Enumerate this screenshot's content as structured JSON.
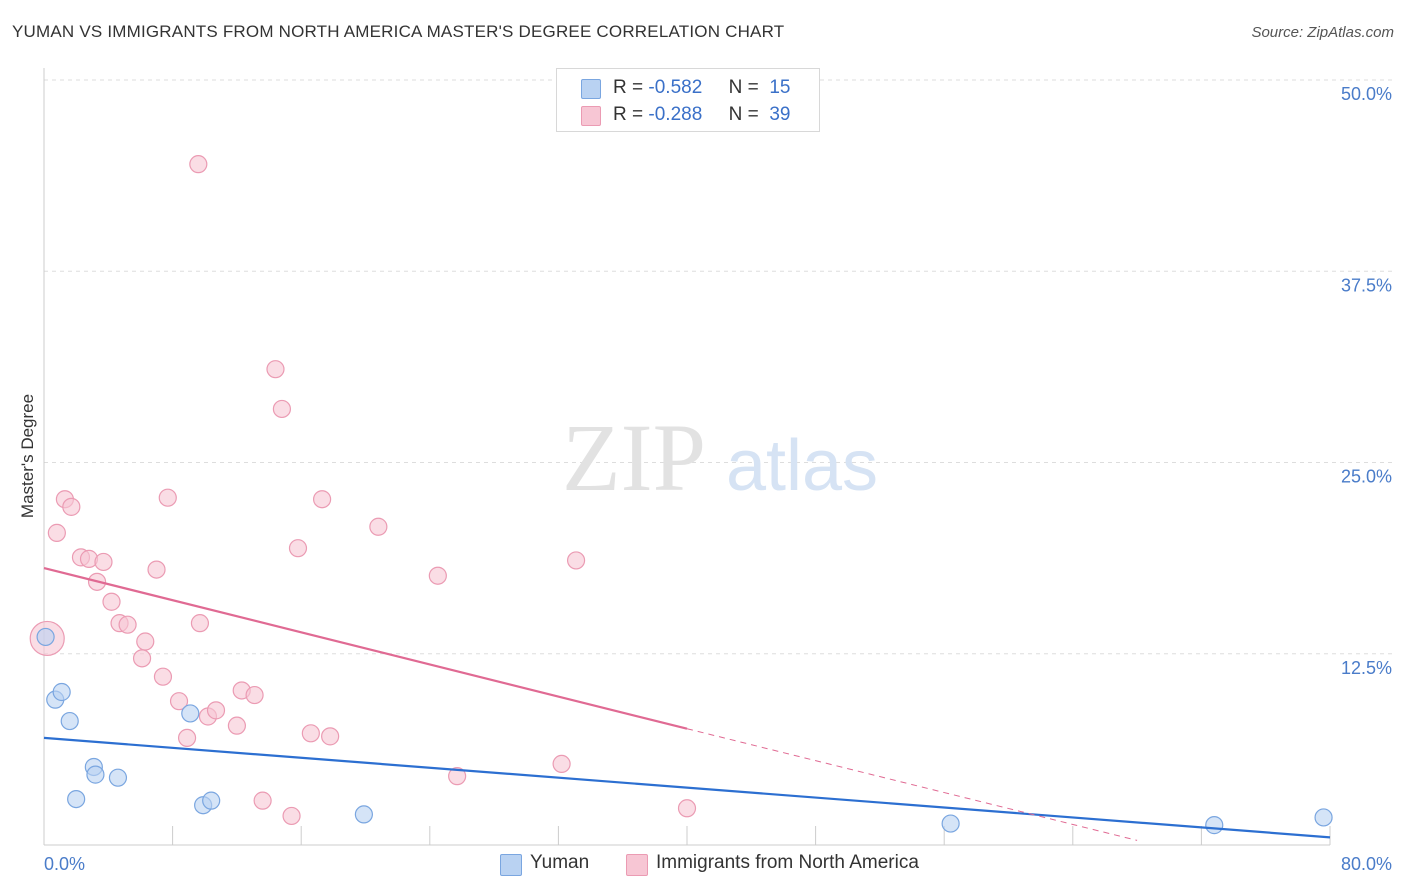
{
  "title": "YUMAN VS IMMIGRANTS FROM NORTH AMERICA MASTER'S DEGREE CORRELATION CHART",
  "source": "Source: ZipAtlas.com",
  "watermark": {
    "zip": "ZIP",
    "atlas": "atlas"
  },
  "legend_top": [
    {
      "r_label": "R =",
      "r_value": "-0.582",
      "n_label": "N =",
      "n_value": "15"
    },
    {
      "r_label": "R =",
      "r_value": "-0.288",
      "n_label": "N =",
      "n_value": "39"
    }
  ],
  "colors": {
    "yuman_fill": "#b9d2f2",
    "yuman_stroke": "#7aa6e0",
    "yuman_line": "#2c6fd1",
    "imm_fill": "#f7c6d4",
    "imm_stroke": "#eb9bb3",
    "imm_line": "#e06a93",
    "grid": "#dddddd",
    "axis_text": "#4a7cc9"
  },
  "chart_data": {
    "type": "scatter",
    "title": "YUMAN VS IMMIGRANTS FROM NORTH AMERICA MASTER'S DEGREE CORRELATION CHART",
    "xlabel": "",
    "ylabel": "Master's Degree",
    "xlim": [
      0,
      80
    ],
    "ylim": [
      0,
      50
    ],
    "x_tick_labels": [
      "0.0%",
      "80.0%"
    ],
    "y_ticks": [
      12.5,
      25.0,
      37.5,
      50.0
    ],
    "y_tick_labels": [
      "12.5%",
      "25.0%",
      "37.5%",
      "50.0%"
    ],
    "grid": true,
    "series": [
      {
        "name": "Yuman",
        "r": -0.582,
        "n": 15,
        "trend": {
          "x0": 0,
          "y0": 7.0,
          "x1": 80,
          "y1": 0.5
        },
        "points": [
          [
            0.1,
            13.6
          ],
          [
            0.7,
            9.5
          ],
          [
            1.1,
            10.0
          ],
          [
            1.6,
            8.1
          ],
          [
            3.1,
            5.1
          ],
          [
            3.2,
            4.6
          ],
          [
            4.6,
            4.4
          ],
          [
            2.0,
            3.0
          ],
          [
            9.1,
            8.6
          ],
          [
            9.9,
            2.6
          ],
          [
            10.4,
            2.9
          ],
          [
            19.9,
            2.0
          ],
          [
            56.4,
            1.4
          ],
          [
            72.8,
            1.3
          ],
          [
            79.6,
            1.8
          ]
        ]
      },
      {
        "name": "Immigrants from North America",
        "r": -0.288,
        "n": 39,
        "trend": {
          "x0": 0,
          "y0": 18.1,
          "x1": 40,
          "y1": 7.6,
          "dash_x1": 68,
          "dash_y1": 0.3
        },
        "points": [
          [
            0.2,
            13.5
          ],
          [
            0.8,
            20.4
          ],
          [
            1.3,
            22.6
          ],
          [
            1.7,
            22.1
          ],
          [
            2.3,
            18.8
          ],
          [
            2.8,
            18.7
          ],
          [
            3.3,
            17.2
          ],
          [
            3.7,
            18.5
          ],
          [
            4.2,
            15.9
          ],
          [
            4.7,
            14.5
          ],
          [
            5.2,
            14.4
          ],
          [
            6.1,
            12.2
          ],
          [
            6.3,
            13.3
          ],
          [
            7.0,
            18.0
          ],
          [
            7.4,
            11.0
          ],
          [
            7.7,
            22.7
          ],
          [
            8.4,
            9.4
          ],
          [
            8.9,
            7.0
          ],
          [
            9.6,
            44.5
          ],
          [
            9.7,
            14.5
          ],
          [
            10.2,
            8.4
          ],
          [
            10.7,
            8.8
          ],
          [
            12.0,
            7.8
          ],
          [
            12.3,
            10.1
          ],
          [
            13.1,
            9.8
          ],
          [
            13.6,
            2.9
          ],
          [
            14.4,
            31.1
          ],
          [
            14.8,
            28.5
          ],
          [
            15.4,
            1.9
          ],
          [
            15.8,
            19.4
          ],
          [
            16.6,
            7.3
          ],
          [
            17.3,
            22.6
          ],
          [
            17.8,
            7.1
          ],
          [
            20.8,
            20.8
          ],
          [
            24.5,
            17.6
          ],
          [
            25.7,
            4.5
          ],
          [
            32.2,
            5.3
          ],
          [
            33.1,
            18.6
          ],
          [
            40.0,
            2.4
          ]
        ]
      }
    ]
  },
  "bottom_legend": [
    {
      "label": "Yuman"
    },
    {
      "label": "Immigrants from North America"
    }
  ]
}
